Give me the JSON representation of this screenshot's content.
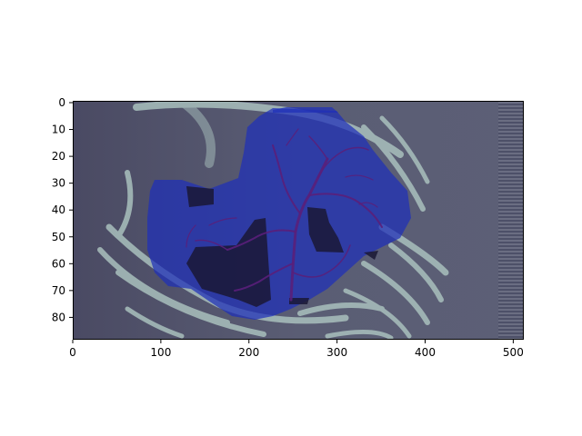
{
  "figure": {
    "type": "image_overlay",
    "image": "ct-chest-maximum-intensity-projection",
    "overlay": "segmentation-mask",
    "overlay_color": "#1f2fb8",
    "vessel_color": "#5a1f7a",
    "dark_region_color": "#1a1835",
    "background_color": "#54566e"
  },
  "axes": {
    "x": {
      "range": [
        0,
        512
      ],
      "ticks": [
        "0",
        "100",
        "200",
        "300",
        "400",
        "500"
      ],
      "tick_values": [
        0,
        100,
        200,
        300,
        400,
        500
      ]
    },
    "y": {
      "range": [
        89,
        0
      ],
      "ticks": [
        "0",
        "10",
        "20",
        "30",
        "40",
        "50",
        "60",
        "70",
        "80"
      ],
      "tick_values": [
        0,
        10,
        20,
        30,
        40,
        50,
        60,
        70,
        80
      ]
    }
  }
}
